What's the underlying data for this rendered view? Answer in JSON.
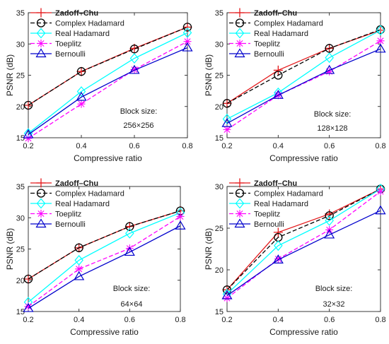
{
  "chart_data": [
    {
      "type": "line",
      "x": [
        0.2,
        0.4,
        0.6,
        0.8
      ],
      "xlim": [
        0.2,
        0.8
      ],
      "ylim": [
        15,
        35
      ],
      "xticks": [
        "0.2",
        "0.4",
        "0.6",
        "0.8"
      ],
      "yticks": [
        "15",
        "20",
        "25",
        "30",
        "35"
      ],
      "xlabel": "Compressive ratio",
      "ylabel": "PSNR (dB)",
      "annotation": [
        "Block size:",
        "256×256"
      ],
      "legend_position": "top-left",
      "series": [
        {
          "name": "Zadoff–Chu",
          "values": [
            20.2,
            25.6,
            29.3,
            32.7
          ],
          "color": "#e41a1c",
          "marker": "plus",
          "dash": "solid"
        },
        {
          "name": "Complex Hadamard",
          "values": [
            20.2,
            25.6,
            29.2,
            32.7
          ],
          "color": "#000000",
          "marker": "circle",
          "dash": "dashed"
        },
        {
          "name": "Real Hadamard",
          "values": [
            15.7,
            22.4,
            27.7,
            31.8
          ],
          "color": "#00ffff",
          "marker": "diamond",
          "dash": "solid"
        },
        {
          "name": "Toeplitz",
          "values": [
            14.9,
            20.4,
            25.9,
            30.4
          ],
          "color": "#ff00ff",
          "marker": "asterisk",
          "dash": "dashed"
        },
        {
          "name": "Bernoulli",
          "values": [
            15.5,
            21.5,
            25.8,
            29.4
          ],
          "color": "#0000cc",
          "marker": "triangle",
          "dash": "solid"
        }
      ]
    },
    {
      "type": "line",
      "x": [
        0.2,
        0.4,
        0.6,
        0.8
      ],
      "xlim": [
        0.2,
        0.8
      ],
      "ylim": [
        15,
        35
      ],
      "xticks": [
        "0.2",
        "0.4",
        "0.6",
        "0.8"
      ],
      "yticks": [
        "15",
        "20",
        "25",
        "30",
        "35"
      ],
      "xlabel": "Compressive ratio",
      "ylabel": "PSNR (dB)",
      "annotation": [
        "Block size:",
        "128×128"
      ],
      "legend_position": "top-left",
      "series": [
        {
          "name": "Zadoff–Chu",
          "values": [
            20.5,
            25.8,
            29.3,
            32.2
          ],
          "color": "#e41a1c",
          "marker": "plus",
          "dash": "solid"
        },
        {
          "name": "Complex Hadamard",
          "values": [
            20.5,
            25.0,
            29.3,
            32.3
          ],
          "color": "#000000",
          "marker": "circle",
          "dash": "dashed"
        },
        {
          "name": "Real Hadamard",
          "values": [
            18.0,
            22.2,
            27.8,
            32.2
          ],
          "color": "#00ffff",
          "marker": "diamond",
          "dash": "solid"
        },
        {
          "name": "Toeplitz",
          "values": [
            16.3,
            21.8,
            25.6,
            30.5
          ],
          "color": "#ff00ff",
          "marker": "asterisk",
          "dash": "dashed"
        },
        {
          "name": "Bernoulli",
          "values": [
            17.3,
            21.8,
            25.8,
            29.2
          ],
          "color": "#0000cc",
          "marker": "triangle",
          "dash": "solid"
        }
      ]
    },
    {
      "type": "line",
      "x": [
        0.2,
        0.4,
        0.6,
        0.8
      ],
      "xlim": [
        0.2,
        0.8
      ],
      "ylim": [
        15,
        35
      ],
      "xticks": [
        "0.2",
        "0.4",
        "0.6",
        "0.8"
      ],
      "yticks": [
        "15",
        "20",
        "25",
        "30",
        "35"
      ],
      "xlabel": "Compressive ratio",
      "ylabel": "PSNR (dB)",
      "annotation": [
        "Block size:",
        "64×64"
      ],
      "legend_position": "top-left",
      "series": [
        {
          "name": "Zadoff–Chu",
          "values": [
            20.2,
            25.2,
            28.6,
            31.1
          ],
          "color": "#e41a1c",
          "marker": "plus",
          "dash": "solid"
        },
        {
          "name": "Complex Hadamard",
          "values": [
            20.2,
            25.2,
            28.6,
            31.1
          ],
          "color": "#000000",
          "marker": "circle",
          "dash": "dashed"
        },
        {
          "name": "Real Hadamard",
          "values": [
            16.5,
            23.2,
            27.5,
            30.8
          ],
          "color": "#00ffff",
          "marker": "diamond",
          "dash": "solid"
        },
        {
          "name": "Toeplitz",
          "values": [
            15.8,
            21.8,
            25.1,
            30.2
          ],
          "color": "#ff00ff",
          "marker": "asterisk",
          "dash": "dashed"
        },
        {
          "name": "Bernoulli",
          "values": [
            15.5,
            20.6,
            24.5,
            28.7
          ],
          "color": "#0000cc",
          "marker": "triangle",
          "dash": "solid"
        }
      ]
    },
    {
      "type": "line",
      "x": [
        0.2,
        0.4,
        0.6,
        0.8
      ],
      "xlim": [
        0.2,
        0.8
      ],
      "ylim": [
        15,
        30
      ],
      "xticks": [
        "0.2",
        "0.4",
        "0.6",
        "0.8"
      ],
      "yticks": [
        "15",
        "20",
        "25",
        "30"
      ],
      "xlabel": "Compressive ratio",
      "ylabel": "PSNR (dB)",
      "annotation": [
        "Block size:",
        "32×32"
      ],
      "legend_position": "top-left",
      "series": [
        {
          "name": "Zadoff–Chu",
          "values": [
            17.6,
            24.5,
            26.7,
            29.7
          ],
          "color": "#e41a1c",
          "marker": "plus",
          "dash": "solid"
        },
        {
          "name": "Complex Hadamard",
          "values": [
            17.6,
            23.9,
            26.5,
            29.7
          ],
          "color": "#000000",
          "marker": "circle",
          "dash": "dashed"
        },
        {
          "name": "Real Hadamard",
          "values": [
            17.1,
            22.9,
            25.9,
            29.7
          ],
          "color": "#00ffff",
          "marker": "diamond",
          "dash": "solid"
        },
        {
          "name": "Toeplitz",
          "values": [
            16.6,
            21.3,
            24.8,
            29.4
          ],
          "color": "#ff00ff",
          "marker": "asterisk",
          "dash": "dashed"
        },
        {
          "name": "Bernoulli",
          "values": [
            16.9,
            21.2,
            24.2,
            27.1
          ],
          "color": "#0000cc",
          "marker": "triangle",
          "dash": "solid"
        }
      ]
    }
  ]
}
